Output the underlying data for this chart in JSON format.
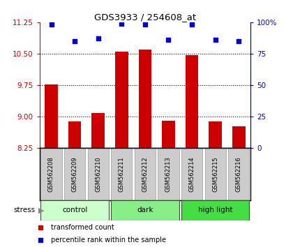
{
  "title": "GDS3933 / 254608_at",
  "samples": [
    "GSM562208",
    "GSM562209",
    "GSM562210",
    "GSM562211",
    "GSM562212",
    "GSM562213",
    "GSM562214",
    "GSM562215",
    "GSM562216"
  ],
  "bar_values": [
    9.77,
    8.88,
    9.08,
    10.55,
    10.6,
    8.9,
    10.47,
    8.88,
    8.78
  ],
  "dot_values": [
    98,
    85,
    87,
    99,
    98,
    86,
    98,
    86,
    85
  ],
  "ylim": [
    8.25,
    11.25
  ],
  "y2lim": [
    0,
    100
  ],
  "yticks": [
    8.25,
    9.0,
    9.75,
    10.5,
    11.25
  ],
  "y2ticks": [
    0,
    25,
    50,
    75,
    100
  ],
  "bar_color": "#cc0000",
  "dot_color": "#0000cc",
  "groups": [
    {
      "label": "control",
      "indices": [
        0,
        1,
        2
      ],
      "color": "#ccffcc"
    },
    {
      "label": "dark",
      "indices": [
        3,
        4,
        5
      ],
      "color": "#88ee88"
    },
    {
      "label": "high light",
      "indices": [
        6,
        7,
        8
      ],
      "color": "#44dd44"
    }
  ],
  "stress_label": "stress",
  "legend_items": [
    {
      "label": "transformed count",
      "color": "#cc0000"
    },
    {
      "label": "percentile rank within the sample",
      "color": "#0000cc"
    }
  ],
  "sample_label_bg": "#cccccc",
  "ytick_color": "#cc0000",
  "y2tick_color": "#0000cc",
  "grid_color": "#000000",
  "background_color": "#ffffff"
}
